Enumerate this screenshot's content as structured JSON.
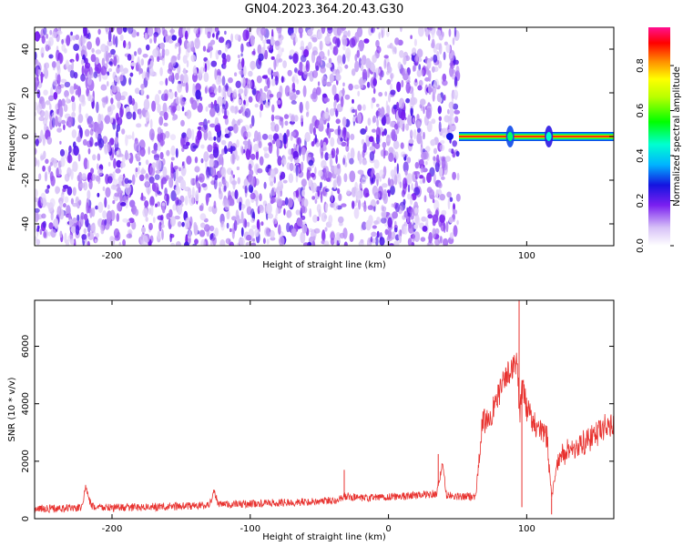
{
  "figure": {
    "title": "GN04.2023.364.20.43.G30"
  },
  "colors": {
    "snr_line": "#e8322f",
    "axis": "#000000"
  },
  "chart_data": [
    {
      "type": "heatmap",
      "xlabel": "Height of straight line (km)",
      "ylabel": "Frequency (Hz)",
      "xlim": [
        -256,
        163
      ],
      "ylim": [
        -50,
        50
      ],
      "xticks": [
        -200,
        -100,
        0,
        100
      ],
      "xtick_labels": [
        "-200",
        "-100",
        "0",
        "100"
      ],
      "yticks": [
        -40,
        -20,
        0,
        20,
        40
      ],
      "ytick_labels": [
        "-40",
        "-20",
        "0",
        "20",
        "40"
      ],
      "noise_region_x": [
        -256,
        51
      ],
      "signal_band": {
        "x_range": [
          51,
          163
        ],
        "frequency": 0,
        "amplitude": 0.9
      },
      "signal_blobs": [
        {
          "x": 88,
          "freq": 0,
          "amplitude": 0.35
        },
        {
          "x": 116,
          "freq": 0,
          "amplitude": 0.3
        }
      ],
      "colorbar": {
        "label": "Normalized spectral amplitude",
        "range": [
          0,
          0.97
        ],
        "ticks": [
          0.0,
          0.2,
          0.4,
          0.6,
          0.8
        ],
        "tick_labels": [
          "0.0",
          "0.2",
          "0.4",
          "0.6",
          "0.8"
        ],
        "stops": [
          {
            "v": 0.0,
            "color": "#ffffff"
          },
          {
            "v": 0.08,
            "color": "#d7c2f7"
          },
          {
            "v": 0.18,
            "color": "#7a1ff0"
          },
          {
            "v": 0.27,
            "color": "#1414e0"
          },
          {
            "v": 0.36,
            "color": "#00b4ff"
          },
          {
            "v": 0.45,
            "color": "#00ffd0"
          },
          {
            "v": 0.55,
            "color": "#00ff00"
          },
          {
            "v": 0.66,
            "color": "#b8ff00"
          },
          {
            "v": 0.74,
            "color": "#ffff00"
          },
          {
            "v": 0.82,
            "color": "#ff8c00"
          },
          {
            "v": 0.9,
            "color": "#ff0000"
          },
          {
            "v": 0.97,
            "color": "#ff1090"
          }
        ]
      }
    },
    {
      "type": "line",
      "xlabel": "Height of straight line (km)",
      "ylabel": "SNR (10 * v/v)",
      "xlim": [
        -256,
        163
      ],
      "ylim": [
        0,
        7600
      ],
      "xticks": [
        -200,
        -100,
        0,
        100
      ],
      "xtick_labels": [
        "-200",
        "-100",
        "0",
        "100"
      ],
      "yticks": [
        0,
        2000,
        4000,
        6000
      ],
      "ytick_labels": [
        "0",
        "2000",
        "4000",
        "6000"
      ],
      "series": [
        {
          "x": [
            -256,
            -230,
            -222,
            -219,
            -215,
            -200,
            -160,
            -130,
            -126,
            -123,
            -100,
            -60,
            -40,
            -30,
            -20,
            0,
            20,
            35,
            39,
            42,
            50,
            63,
            68,
            75,
            82,
            88,
            93,
            95,
            97,
            100,
            110,
            115,
            118,
            122,
            130,
            140,
            150,
            156,
            163
          ],
          "y": [
            350,
            360,
            380,
            1100,
            420,
            380,
            420,
            460,
            950,
            480,
            520,
            580,
            640,
            780,
            700,
            760,
            820,
            880,
            1900,
            820,
            760,
            780,
            3300,
            3700,
            4600,
            5200,
            5500,
            3500,
            4700,
            3800,
            3000,
            2800,
            700,
            2000,
            2400,
            2600,
            2900,
            3200,
            3300
          ]
        }
      ],
      "spikes": [
        {
          "x": 94.5,
          "y": 7600
        },
        {
          "x": 96.5,
          "y": 400
        },
        {
          "x": 118,
          "y": 150
        },
        {
          "x": -32,
          "y": 1700
        },
        {
          "x": 36,
          "y": 2250
        }
      ]
    }
  ]
}
